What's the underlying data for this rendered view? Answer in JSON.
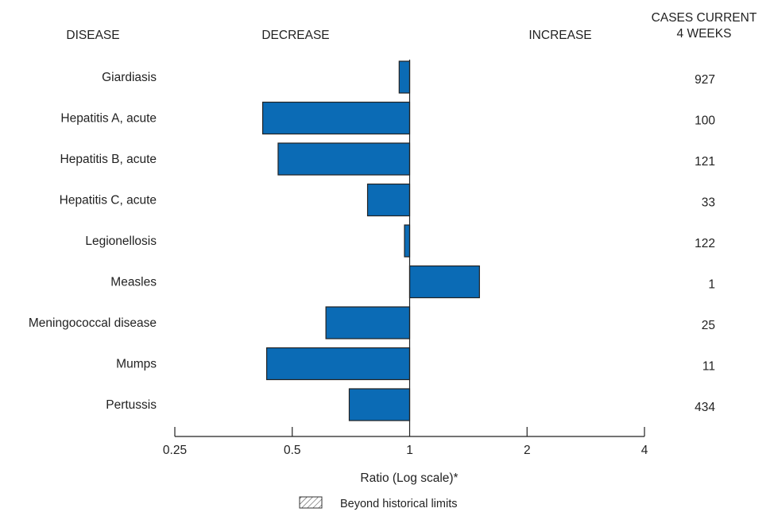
{
  "headers": {
    "disease": "DISEASE",
    "decrease": "DECREASE",
    "increase": "INCREASE",
    "cases_line1": "CASES CURRENT",
    "cases_line2": "4 WEEKS"
  },
  "legend": {
    "label": "Beyond historical limits"
  },
  "colors": {
    "bar_fill": "#0b6bb5",
    "bar_stroke": "#222222"
  },
  "chart_data": {
    "type": "bar",
    "orientation": "horizontal",
    "xscale": "log2",
    "categories": [
      "Giardiasis",
      "Hepatitis A, acute",
      "Hepatitis B, acute",
      "Hepatitis C, acute",
      "Legionellosis",
      "Measles",
      "Meningococcal disease",
      "Mumps",
      "Pertussis"
    ],
    "values": [
      0.94,
      0.42,
      0.46,
      0.78,
      0.97,
      1.51,
      0.61,
      0.43,
      0.7
    ],
    "cases": [
      "927",
      "100",
      "121",
      "33",
      "122",
      "1",
      "25",
      "11",
      "434"
    ],
    "xticks": [
      0.25,
      0.5,
      1,
      2,
      4
    ],
    "xtick_labels": [
      "0.25",
      "0.5",
      "1",
      "2",
      "4"
    ],
    "xlim": [
      0.25,
      4
    ],
    "baseline": 1,
    "xlabel": "Ratio (Log scale)*"
  }
}
